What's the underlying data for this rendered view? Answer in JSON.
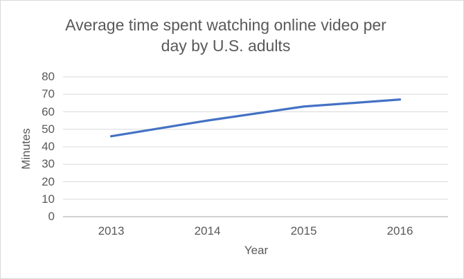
{
  "chart_data": {
    "type": "line",
    "title": "Average time spent watching online video per day by U.S. adults",
    "xlabel": "Year",
    "ylabel": "Minutes",
    "categories": [
      "2013",
      "2014",
      "2015",
      "2016"
    ],
    "series": [
      {
        "name": "Minutes",
        "values": [
          46,
          55,
          63,
          67
        ]
      }
    ],
    "ylim": [
      0,
      80
    ],
    "yticks": [
      0,
      10,
      20,
      30,
      40,
      50,
      60,
      70,
      80
    ],
    "grid": "horizontal",
    "legend": "none"
  },
  "colors": {
    "line": "#4472C4",
    "text": "#595959",
    "gridline": "#D9D9D9",
    "axis_line": "#C0C0C0",
    "border": "#D9D9D9",
    "background": "#FFFFFF"
  }
}
